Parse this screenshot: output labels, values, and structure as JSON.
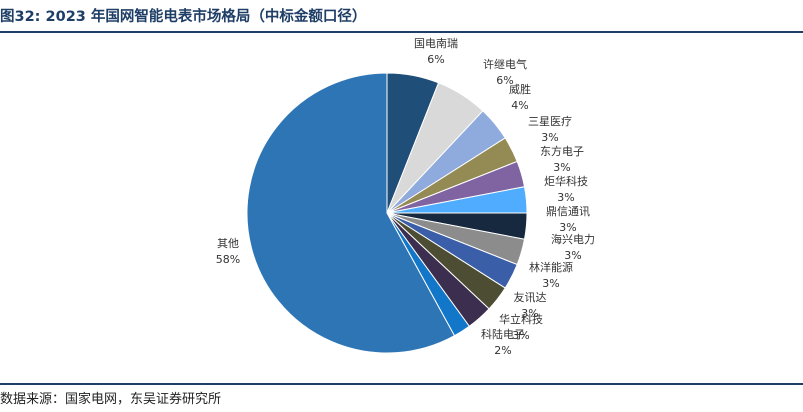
{
  "header": {
    "title": "图32:  2023 年国网智能电表市场格局（中标金额口径）"
  },
  "footer": {
    "source": "数据来源：国家电网，东吴证券研究所"
  },
  "chart_data": {
    "type": "pie",
    "title": "2023 年国网智能电表市场格局（中标金额口径）",
    "start_angle_deg": 0,
    "direction": "clockwise",
    "slices": [
      {
        "name": "国电南瑞",
        "value": 6,
        "label": "6%",
        "color": "#1f4e79"
      },
      {
        "name": "许继电气",
        "value": 6,
        "label": "6%",
        "color": "#d9d9d9"
      },
      {
        "name": "威胜",
        "value": 4,
        "label": "4%",
        "color": "#8faadc"
      },
      {
        "name": "三星医疗",
        "value": 3,
        "label": "3%",
        "color": "#948a54"
      },
      {
        "name": "东方电子",
        "value": 3,
        "label": "3%",
        "color": "#8064a2"
      },
      {
        "name": "炬华科技",
        "value": 3,
        "label": "3%",
        "color": "#4facfe"
      },
      {
        "name": "鼎信通讯",
        "value": 3,
        "label": "3%",
        "color": "#17293f"
      },
      {
        "name": "海兴电力",
        "value": 3,
        "label": "3%",
        "color": "#8c8c8c"
      },
      {
        "name": "林洋能源",
        "value": 3,
        "label": "3%",
        "color": "#3a5fa8"
      },
      {
        "name": "友讯达",
        "value": 3,
        "label": "3%",
        "color": "#4d4d33"
      },
      {
        "name": "华立科技",
        "value": 3,
        "label": "3%",
        "color": "#3b2e4f"
      },
      {
        "name": "科陆电子",
        "value": 2,
        "label": "2%",
        "color": "#1277c9"
      },
      {
        "name": "其他",
        "value": 58,
        "label": "58%",
        "color": "#2e75b6"
      }
    ]
  }
}
